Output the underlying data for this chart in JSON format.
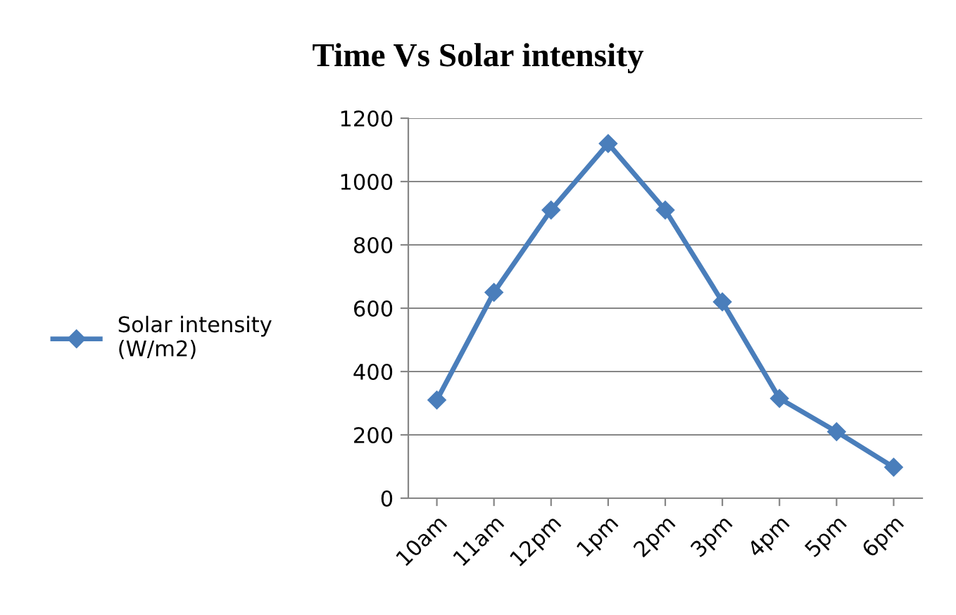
{
  "chart_data": {
    "type": "line",
    "title": "Time Vs Solar intensity",
    "categories": [
      "10am",
      "11am",
      "12pm",
      "1pm",
      "2pm",
      "3pm",
      "4pm",
      "5pm",
      "6pm"
    ],
    "series": [
      {
        "name": "Solar intensity\n(W/m2)",
        "color": "#4a7ebb",
        "values": [
          310,
          650,
          910,
          1120,
          910,
          620,
          315,
          210,
          98
        ]
      }
    ],
    "ylim": [
      0,
      1200
    ],
    "yticks": [
      0,
      200,
      400,
      600,
      800,
      1000,
      1200
    ],
    "grid": "y",
    "legend": "left",
    "marker": "diamond",
    "line_style": "solid"
  }
}
